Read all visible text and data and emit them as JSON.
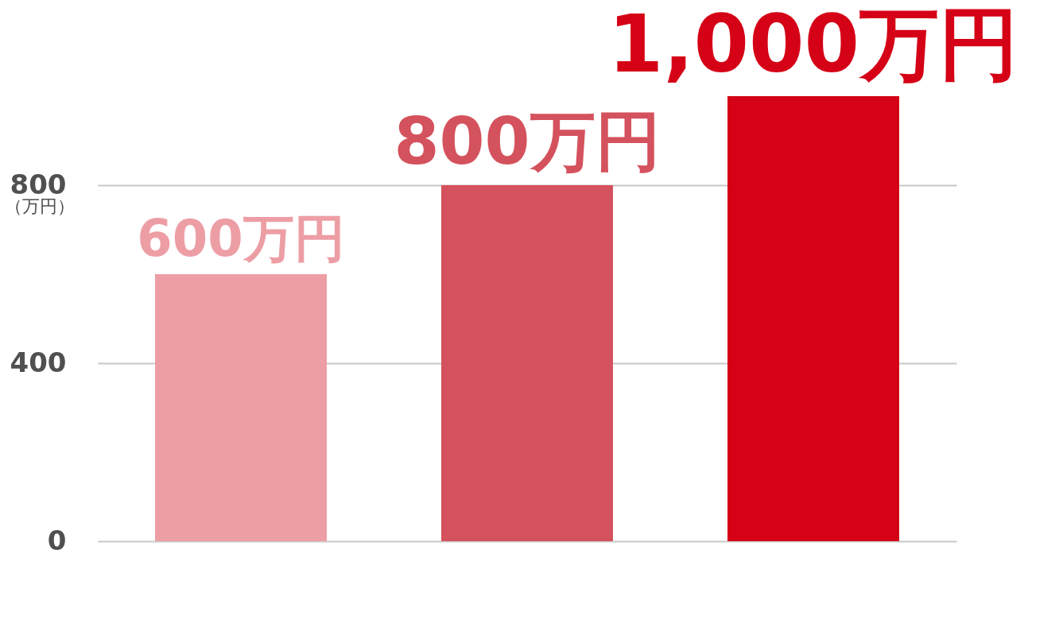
{
  "chart_data": {
    "type": "bar",
    "categories": [
      null,
      null,
      null
    ],
    "values": [
      600,
      800,
      1000
    ],
    "colors": [
      "#ed9ea5",
      "#d4525d",
      "#d50116"
    ],
    "value_labels": [
      "600万円",
      "800万円",
      "1,000万円"
    ],
    "ylabel": "（万円）",
    "ylim": [
      0,
      1000
    ],
    "yticks": [
      0,
      400,
      800
    ],
    "grid": "y",
    "tick_labels": "y"
  }
}
